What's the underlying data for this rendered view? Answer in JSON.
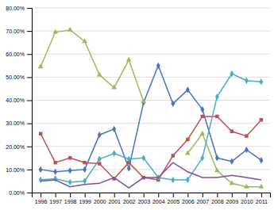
{
  "chart_data": {
    "type": "line",
    "x": [
      1996,
      1997,
      1998,
      1999,
      2000,
      2001,
      2002,
      2003,
      2004,
      2005,
      2006,
      2007,
      2008,
      2009,
      2010,
      2011
    ],
    "series": [
      {
        "color": "#4472C4",
        "marker": "diamond",
        "values": [
          10.0,
          9.0,
          9.5,
          10.0,
          25.0,
          27.5,
          10.5,
          39.0,
          55.0,
          38.5,
          44.5,
          36.0,
          15.0,
          13.5,
          18.5,
          14.0
        ]
      },
      {
        "color": "#C0504D",
        "marker": "square",
        "values": [
          25.5,
          13.0,
          15.0,
          13.0,
          12.5,
          6.0,
          13.0,
          6.5,
          5.5,
          16.0,
          23.0,
          33.0,
          33.0,
          26.5,
          24.5,
          31.5
        ]
      },
      {
        "color": "#9BBB59",
        "marker": "triangle",
        "values": [
          54.5,
          69.5,
          70.5,
          65.5,
          51.0,
          45.5,
          57.5,
          39.5,
          null,
          null,
          17.0,
          25.5,
          9.5,
          4.0,
          2.5,
          2.5
        ]
      },
      {
        "color": "#4BACC6",
        "marker": "diamond",
        "values": [
          5.5,
          6.0,
          4.5,
          5.0,
          14.5,
          17.0,
          14.5,
          15.0,
          6.5,
          5.5,
          5.5,
          15.0,
          41.5,
          51.5,
          48.5,
          48.0
        ]
      },
      {
        "color": "#7B4EA0",
        "marker": "none",
        "values": [
          5.0,
          5.5,
          2.5,
          3.5,
          4.0,
          6.5,
          2.0,
          6.5,
          6.5,
          13.0,
          9.0,
          6.5,
          6.5,
          7.5,
          6.5,
          5.5
        ]
      }
    ],
    "xlim": [
      1995.4,
      2011.6
    ],
    "xticks": [
      1996,
      1997,
      1998,
      1999,
      2000,
      2001,
      2002,
      2003,
      2004,
      2005,
      2006,
      2007,
      2008,
      2009,
      2010,
      2011
    ],
    "ylim": [
      0.0,
      80.0
    ],
    "yticks": [
      {
        "value": 0,
        "label": "0.00%"
      },
      {
        "value": 10,
        "label": "10.00%"
      },
      {
        "value": 20,
        "label": "20.00%"
      },
      {
        "value": 30,
        "label": "30.00%"
      },
      {
        "value": 40,
        "label": "40.00%"
      },
      {
        "value": 50,
        "label": "50.00%"
      },
      {
        "value": 60,
        "label": "60.00%"
      },
      {
        "value": 70,
        "label": "70.00%"
      },
      {
        "value": 80,
        "label": "80.00%"
      }
    ],
    "grid": true
  }
}
